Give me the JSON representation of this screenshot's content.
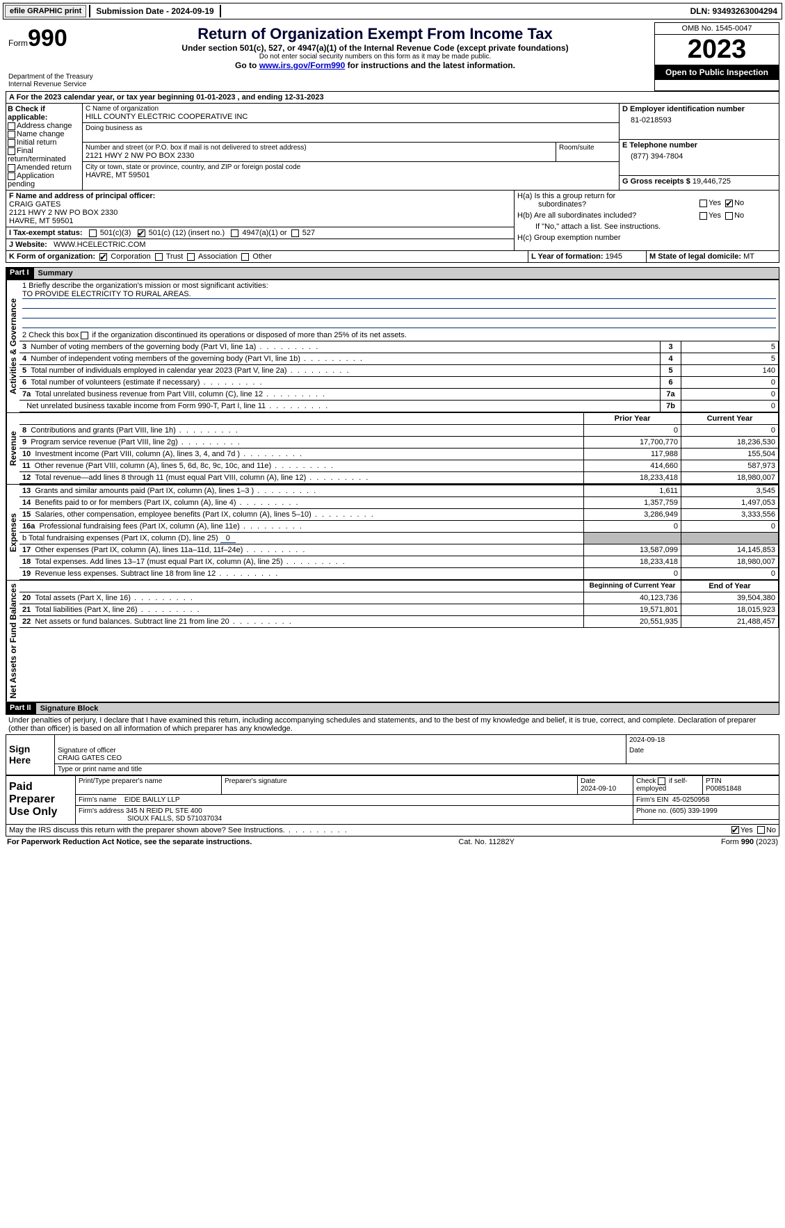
{
  "topbar": {
    "efile_label": "efile GRAPHIC print",
    "submission_label": "Submission Date - 2024-09-19",
    "dln_label": "DLN: 93493263004294"
  },
  "header": {
    "form_small": "Form",
    "form_num": "990",
    "title": "Return of Organization Exempt From Income Tax",
    "subtitle": "Under section 501(c), 527, or 4947(a)(1) of the Internal Revenue Code (except private foundations)",
    "ssn_note": "Do not enter social security numbers on this form as it may be made public.",
    "goto_prefix": "Go to ",
    "goto_link": "www.irs.gov/Form990",
    "goto_suffix": " for instructions and the latest information.",
    "dept": "Department of the Treasury",
    "irs": "Internal Revenue Service",
    "omb": "OMB No. 1545-0047",
    "year": "2023",
    "open_public": "Open to Public Inspection"
  },
  "line_a": "A For the 2023 calendar year, or tax year beginning 01-01-2023   , and ending 12-31-2023",
  "box_b": {
    "title": "B Check if applicable:",
    "items": [
      "Address change",
      "Name change",
      "Initial return",
      "Final return/terminated",
      "Amended return",
      "Application pending"
    ]
  },
  "box_c": {
    "name_label": "C Name of organization",
    "name": "HILL COUNTY ELECTRIC COOPERATIVE INC",
    "dba_label": "Doing business as",
    "street_label": "Number and street (or P.O. box if mail is not delivered to street address)",
    "street": "2121 HWY 2 NW PO BOX 2330",
    "room_label": "Room/suite",
    "city_label": "City or town, state or province, country, and ZIP or foreign postal code",
    "city": "HAVRE, MT  59501"
  },
  "box_d": {
    "label": "D Employer identification number",
    "value": "81-0218593"
  },
  "box_e": {
    "label": "E Telephone number",
    "value": "(877) 394-7804"
  },
  "box_g": {
    "label": "G Gross receipts $ ",
    "value": "19,446,725"
  },
  "box_f": {
    "label": "F  Name and address of principal officer:",
    "name": "CRAIG GATES",
    "street": "2121 HWY 2 NW PO BOX 2330",
    "city": "HAVRE, MT  59501"
  },
  "box_h": {
    "ha_label": "H(a)  Is this a group return for",
    "ha_sub": "subordinates?",
    "hb_label": "H(b)  Are all subordinates included?",
    "hb_note": "If \"No,\" attach a list. See instructions.",
    "hc_label": "H(c)  Group exemption number",
    "yes": "Yes",
    "no": "No"
  },
  "line_i": {
    "label": "I    Tax-exempt status:",
    "c3": "501(c)(3)",
    "c_other_pre": "501(c) (",
    "c_other_num": "12",
    "c_other_post": ") (insert no.)",
    "a4947": "4947(a)(1) or",
    "s527": "527"
  },
  "line_j": {
    "label": "J   Website:",
    "value": "WWW.HCELECTRIC.COM"
  },
  "line_k": {
    "label": "K Form of organization:",
    "corp": "Corporation",
    "trust": "Trust",
    "assoc": "Association",
    "other": "Other"
  },
  "line_l": {
    "label": "L Year of formation: ",
    "value": "1945"
  },
  "line_m": {
    "label": "M State of legal domicile: ",
    "value": "MT"
  },
  "part1": {
    "hdr": "Part I",
    "title": "Summary",
    "sections": {
      "gov": "Activities & Governance",
      "rev": "Revenue",
      "exp": "Expenses",
      "net": "Net Assets or Fund Balances"
    },
    "line1_label": "1   Briefly describe the organization's mission or most significant activities:",
    "line1_value": "TO PROVIDE ELECTRICITY TO RURAL AREAS.",
    "line2": "2   Check this box    if the organization discontinued its operations or disposed of more than 25% of its net assets.",
    "rows_gov": [
      {
        "n": "3",
        "label": "Number of voting members of the governing body (Part VI, line 1a)",
        "box": "3",
        "val": "5"
      },
      {
        "n": "4",
        "label": "Number of independent voting members of the governing body (Part VI, line 1b)",
        "box": "4",
        "val": "5"
      },
      {
        "n": "5",
        "label": "Total number of individuals employed in calendar year 2023 (Part V, line 2a)",
        "box": "5",
        "val": "140"
      },
      {
        "n": "6",
        "label": "Total number of volunteers (estimate if necessary)",
        "box": "6",
        "val": "0"
      },
      {
        "n": "7a",
        "label": "Total unrelated business revenue from Part VIII, column (C), line 12",
        "box": "7a",
        "val": "0"
      },
      {
        "n": "",
        "label": "Net unrelated business taxable income from Form 990-T, Part I, line 11",
        "box": "7b",
        "val": "0"
      }
    ],
    "col_prior": "Prior Year",
    "col_current": "Current Year",
    "rows_rev": [
      {
        "n": "8",
        "label": "Contributions and grants (Part VIII, line 1h)",
        "prior": "0",
        "curr": "0"
      },
      {
        "n": "9",
        "label": "Program service revenue (Part VIII, line 2g)",
        "prior": "17,700,770",
        "curr": "18,236,530"
      },
      {
        "n": "10",
        "label": "Investment income (Part VIII, column (A), lines 3, 4, and 7d )",
        "prior": "117,988",
        "curr": "155,504"
      },
      {
        "n": "11",
        "label": "Other revenue (Part VIII, column (A), lines 5, 6d, 8c, 9c, 10c, and 11e)",
        "prior": "414,660",
        "curr": "587,973"
      },
      {
        "n": "12",
        "label": "Total revenue—add lines 8 through 11 (must equal Part VIII, column (A), line 12)",
        "prior": "18,233,418",
        "curr": "18,980,007"
      }
    ],
    "rows_exp": [
      {
        "n": "13",
        "label": "Grants and similar amounts paid (Part IX, column (A), lines 1–3 )",
        "prior": "1,611",
        "curr": "3,545"
      },
      {
        "n": "14",
        "label": "Benefits paid to or for members (Part IX, column (A), line 4)",
        "prior": "1,357,759",
        "curr": "1,497,053"
      },
      {
        "n": "15",
        "label": "Salaries, other compensation, employee benefits (Part IX, column (A), lines 5–10)",
        "prior": "3,286,949",
        "curr": "3,333,556"
      },
      {
        "n": "16a",
        "label": "Professional fundraising fees (Part IX, column (A), line 11e)",
        "prior": "0",
        "curr": "0"
      }
    ],
    "line16b_label": "b   Total fundraising expenses (Part IX, column (D), line 25) ",
    "line16b_val": "0",
    "rows_exp2": [
      {
        "n": "17",
        "label": "Other expenses (Part IX, column (A), lines 11a–11d, 11f–24e)",
        "prior": "13,587,099",
        "curr": "14,145,853"
      },
      {
        "n": "18",
        "label": "Total expenses. Add lines 13–17 (must equal Part IX, column (A), line 25)",
        "prior": "18,233,418",
        "curr": "18,980,007"
      },
      {
        "n": "19",
        "label": "Revenue less expenses. Subtract line 18 from line 12",
        "prior": "0",
        "curr": "0"
      }
    ],
    "col_begin": "Beginning of Current Year",
    "col_end": "End of Year",
    "rows_net": [
      {
        "n": "20",
        "label": "Total assets (Part X, line 16)",
        "prior": "40,123,736",
        "curr": "39,504,380"
      },
      {
        "n": "21",
        "label": "Total liabilities (Part X, line 26)",
        "prior": "19,571,801",
        "curr": "18,015,923"
      },
      {
        "n": "22",
        "label": "Net assets or fund balances. Subtract line 21 from line 20",
        "prior": "20,551,935",
        "curr": "21,488,457"
      }
    ]
  },
  "part2": {
    "hdr": "Part II",
    "title": "Signature Block",
    "penalties": "Under penalties of perjury, I declare that I have examined this return, including accompanying schedules and statements, and to the best of my knowledge and belief, it is true, correct, and complete. Declaration of preparer (other than officer) is based on all information of which preparer has any knowledge.",
    "sign_here": "Sign Here",
    "sig_date": "2024-09-18",
    "sig_officer_label": "Signature of officer",
    "sig_name": "CRAIG GATES CEO",
    "sig_name_label": "Type or print name and title",
    "date_label": "Date",
    "paid": "Paid Preparer Use Only",
    "prep_name_label": "Print/Type preparer's name",
    "prep_sig_label": "Preparer's signature",
    "prep_date_label": "Date",
    "prep_date": "2024-09-10",
    "self_emp": "Check    if self-employed",
    "ptin_label": "PTIN",
    "ptin": "P00851848",
    "firm_name_label": "Firm's name",
    "firm_name": "EIDE BAILLY LLP",
    "firm_ein_label": "Firm's EIN",
    "firm_ein": "45-0250958",
    "firm_addr_label": "Firm's address",
    "firm_addr1": "345 N REID PL STE 400",
    "firm_addr2": "SIOUX FALLS, SD  571037034",
    "phone_label": "Phone no.",
    "phone": "(605) 339-1999",
    "discuss": "May the IRS discuss this return with the preparer shown above? See Instructions."
  },
  "footer": {
    "left": "For Paperwork Reduction Act Notice, see the separate instructions.",
    "center": "Cat. No. 11282Y",
    "right_pre": "Form ",
    "right_form": "990",
    "right_post": " (2023)"
  }
}
